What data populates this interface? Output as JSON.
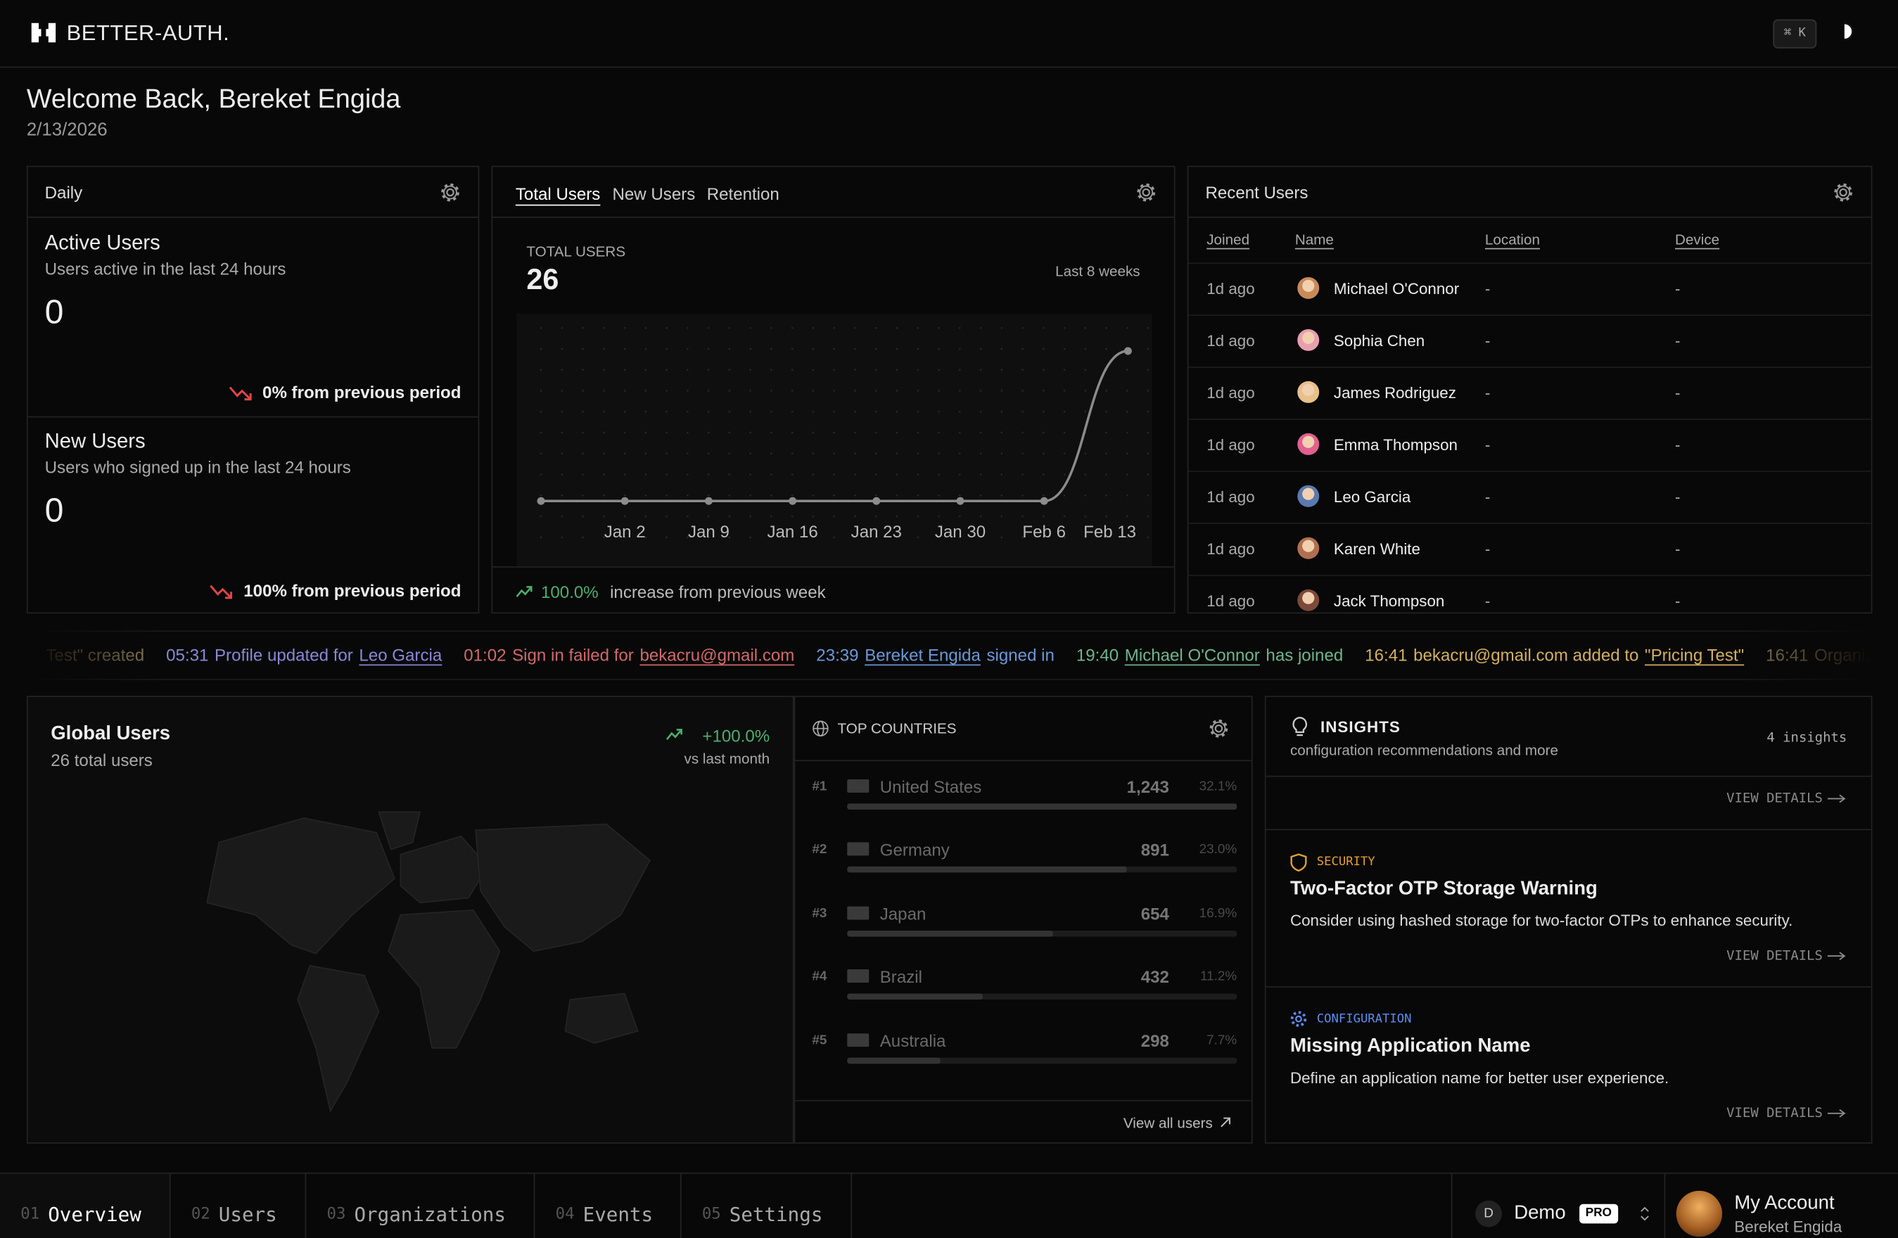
{
  "header": {
    "brand": "BETTER-AUTH.",
    "shortcut": "⌘ K"
  },
  "welcome": {
    "title": "Welcome Back, Bereket Engida",
    "date": "2/13/2026"
  },
  "daily": {
    "title": "Daily",
    "cards": [
      {
        "title": "Active Users",
        "subtitle": "Users active in the last 24 hours",
        "value": "0",
        "change": "0% from previous period"
      },
      {
        "title": "New Users",
        "subtitle": "Users who signed up in the last 24 hours",
        "value": "0",
        "change": "100% from previous period"
      }
    ]
  },
  "users_chart": {
    "tabs": [
      "Total Users",
      "New Users",
      "Retention"
    ],
    "label": "TOTAL USERS",
    "total": "26",
    "range": "Last 8 weeks",
    "change": "100.0%",
    "change_note": "increase from previous week"
  },
  "chart_data": {
    "type": "line",
    "categories": [
      null,
      "Jan 2",
      "Jan 9",
      "Jan 16",
      "Jan 23",
      "Jan 30",
      "Feb 6",
      "Feb 13"
    ],
    "values": [
      0,
      0,
      0,
      0,
      0,
      0,
      0,
      26
    ],
    "ylim": [
      0,
      30
    ],
    "color": "#8c8c8c",
    "grid": "dots"
  },
  "recent_users": {
    "title": "Recent Users",
    "columns": [
      "Joined",
      "Name",
      "Location",
      "Device"
    ],
    "rows": [
      [
        "1d ago",
        "Michael O'Connor",
        "-",
        "-"
      ],
      [
        "1d ago",
        "Sophia Chen",
        "-",
        "-"
      ],
      [
        "1d ago",
        "James Rodriguez",
        "-",
        "-"
      ],
      [
        "1d ago",
        "Emma Thompson",
        "-",
        "-"
      ],
      [
        "1d ago",
        "Leo Garcia",
        "-",
        "-"
      ],
      [
        "1d ago",
        "Karen White",
        "-",
        "-"
      ],
      [
        "1d ago",
        "Jack Thompson",
        "-",
        "-"
      ]
    ]
  },
  "activity": [
    {
      "time": null,
      "color": "#8a7c52",
      "segments": [
        {
          "text": "Test\" created",
          "link": false
        }
      ]
    },
    {
      "time": "05:31",
      "color": "#8d86d6",
      "segments": [
        {
          "text": "Profile updated for",
          "link": false
        },
        {
          "text": "Leo Garcia",
          "link": true
        }
      ]
    },
    {
      "time": "01:02",
      "color": "#d06a6a",
      "segments": [
        {
          "text": "Sign in failed for",
          "link": false
        },
        {
          "text": "bekacru@gmail.com",
          "link": true
        }
      ]
    },
    {
      "time": "23:39",
      "color": "#6b98d6",
      "segments": [
        {
          "text": "Bereket Engida",
          "link": true
        },
        {
          "text": "signed in",
          "link": false
        }
      ]
    },
    {
      "time": "19:40",
      "color": "#6fb58c",
      "segments": [
        {
          "text": "Michael O'Connor",
          "link": true
        },
        {
          "text": "has joined",
          "link": false
        }
      ]
    },
    {
      "time": "16:41",
      "color": "#d4b060",
      "segments": [
        {
          "text": "bekacru@gmail.com added to",
          "link": false
        },
        {
          "text": "\"Pricing Test\"",
          "link": true
        }
      ]
    },
    {
      "time": "16:41",
      "color": "#8a7c52",
      "segments": [
        {
          "text": "Organiza",
          "link": false
        }
      ]
    }
  ],
  "global_users": {
    "title": "Global Users",
    "subtitle": "26 total users",
    "change": "+100.0%",
    "note": "vs last month"
  },
  "top_countries": {
    "title": "TOP COUNTRIES",
    "footer": "View all users",
    "rows": [
      {
        "rank": "#1",
        "name": "United States",
        "users": "1,243",
        "share": 32.1,
        "share_label": "32.1%"
      },
      {
        "rank": "#2",
        "name": "Germany",
        "users": "891",
        "share": 23.0,
        "share_label": "23.0%"
      },
      {
        "rank": "#3",
        "name": "Japan",
        "users": "654",
        "share": 16.9,
        "share_label": "16.9%"
      },
      {
        "rank": "#4",
        "name": "Brazil",
        "users": "432",
        "share": 11.2,
        "share_label": "11.2%"
      },
      {
        "rank": "#5",
        "name": "Australia",
        "users": "298",
        "share": 7.7,
        "share_label": "7.7%"
      }
    ]
  },
  "insights": {
    "title": "INSIGHTS",
    "subtitle": "configuration recommendations and more",
    "count": "4 insights",
    "action": "VIEW DETAILS",
    "items": [
      {
        "category": "SECURITY",
        "color": "#e0a030",
        "title": "Two-Factor OTP Storage Warning",
        "description": "Consider using hashed storage for two-factor OTPs to enhance security.",
        "action": "VIEW DETAILS"
      },
      {
        "category": "CONFIGURATION",
        "color": "#5b8def",
        "title": "Missing Application Name",
        "description": "Define an application name for better user experience.",
        "action": "VIEW DETAILS"
      }
    ]
  },
  "nav": {
    "tabs": [
      {
        "num": "01",
        "label": "Overview"
      },
      {
        "num": "02",
        "label": "Users"
      },
      {
        "num": "03",
        "label": "Organizations"
      },
      {
        "num": "04",
        "label": "Events"
      },
      {
        "num": "05",
        "label": "Settings"
      }
    ],
    "org": {
      "initial": "D",
      "name": "Demo",
      "badge": "PRO"
    },
    "account": {
      "title": "My Account",
      "name": "Bereket Engida"
    }
  }
}
